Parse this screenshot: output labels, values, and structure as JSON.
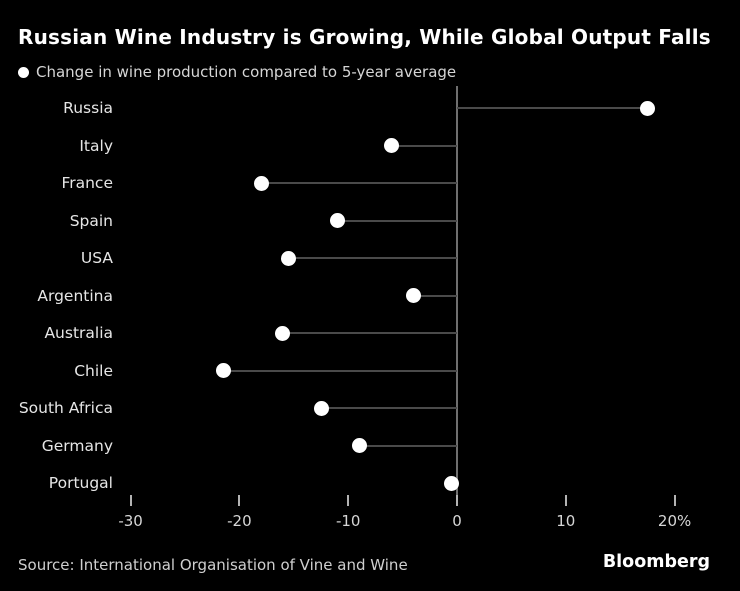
{
  "title": "Russian Wine Industry is Growing, While Global Output Falls",
  "legend": {
    "label": "Change in wine production compared to 5-year average"
  },
  "footer": {
    "source": "Source: International Organisation of Vine and Wine",
    "brand": "Bloomberg"
  },
  "chart_data": {
    "type": "scatter",
    "style": "lollipop",
    "orientation": "horizontal",
    "title": "Russian Wine Industry is Growing, While Global Output Falls",
    "subtitle": "Change in wine production compared to 5-year average",
    "unit": "%",
    "categories": [
      "Russia",
      "Italy",
      "France",
      "Spain",
      "USA",
      "Argentina",
      "Australia",
      "Chile",
      "South Africa",
      "Germany",
      "Portugal"
    ],
    "values": [
      17.5,
      -6,
      -18,
      -11,
      -15.5,
      -4,
      -16,
      -21.5,
      -12.5,
      -9,
      -0.5
    ],
    "baseline": 0,
    "xlim": [
      -32,
      26
    ],
    "xticks": [
      -30,
      -20,
      -10,
      0,
      10,
      20
    ],
    "xtick_labels": [
      "-30",
      "-20",
      "-10",
      "0",
      "10",
      "20%"
    ],
    "grid": "none",
    "legend_position": "top-left",
    "colors": {
      "background": "#000000",
      "dot": "#ffffff",
      "stem": "#4a4a4a",
      "zero_line": "#6f6f6f",
      "tick": "#b3b3b3",
      "tick_text": "#d6d6d6",
      "label_text": "#e6e6e6"
    }
  }
}
